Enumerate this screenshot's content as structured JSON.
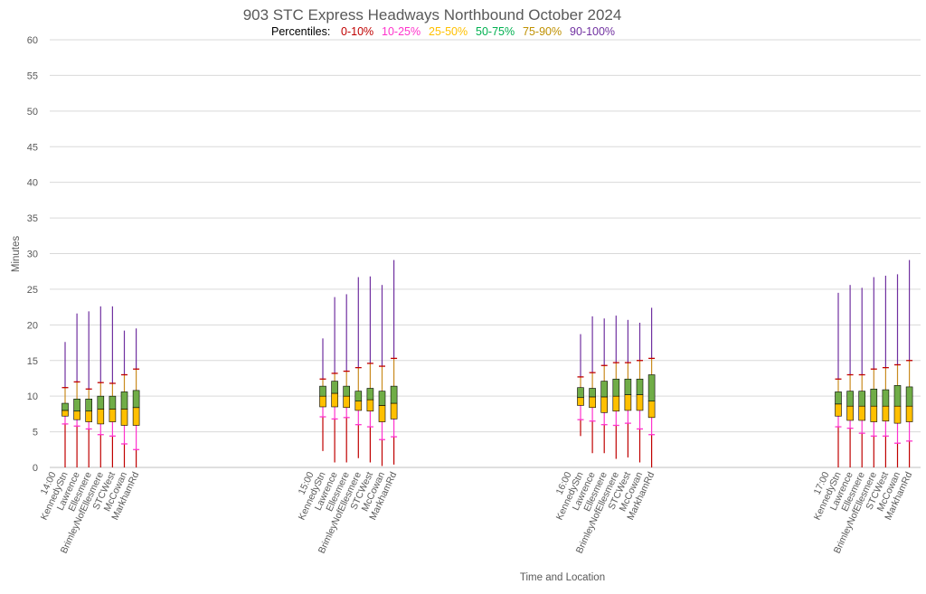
{
  "colors": {
    "p0_10": "#c00000",
    "p10_25": "#ff33cc",
    "p25_50": "#ffc000",
    "p50_75": "#70ad47",
    "p75_90": "#c98b1f",
    "p90_100": "#7030a0",
    "p25_50_legend": "#ffc000",
    "p50_75_legend": "#00b050",
    "p75_90_legend": "#bf9000",
    "grid": "#d9d9d9",
    "text": "#595959"
  },
  "chart_data": {
    "type": "box",
    "title": "903 STC Express Headways Northbound October 2024",
    "legend": {
      "label": "Percentiles:",
      "entries": [
        "0-10%",
        "10-25%",
        "25-50%",
        "50-75%",
        "75-90%",
        "90-100%"
      ],
      "placement": "top"
    },
    "xlabel": "Time and Location",
    "ylabel": "Minutes",
    "ylim": [
      0,
      60
    ],
    "yticks": [
      0,
      5,
      10,
      15,
      20,
      25,
      30,
      35,
      40,
      45,
      50,
      55,
      60
    ],
    "grid": true,
    "groups": [
      {
        "time": "14:00",
        "stops": [
          {
            "name": "KennedyStn",
            "min": 0,
            "p10": 6.1,
            "p25": 7.2,
            "p50": 8.0,
            "p75": 9.0,
            "p90": 11.2,
            "max": 17.6
          },
          {
            "name": "Lawrence",
            "min": 0,
            "p10": 5.8,
            "p25": 6.7,
            "p50": 7.9,
            "p75": 9.6,
            "p90": 12.0,
            "max": 21.6
          },
          {
            "name": "Ellesmere",
            "min": 0,
            "p10": 5.4,
            "p25": 6.4,
            "p50": 7.9,
            "p75": 9.6,
            "p90": 11.0,
            "max": 21.9
          },
          {
            "name": "BrimleyNofEllesmere",
            "min": 0,
            "p10": 4.6,
            "p25": 6.1,
            "p50": 8.2,
            "p75": 10.0,
            "p90": 11.9,
            "max": 22.6
          },
          {
            "name": "STCWest",
            "min": 0,
            "p10": 4.4,
            "p25": 6.4,
            "p50": 8.2,
            "p75": 10.0,
            "p90": 11.8,
            "max": 22.6
          },
          {
            "name": "McCowan",
            "min": 0,
            "p10": 3.3,
            "p25": 5.9,
            "p50": 8.2,
            "p75": 10.6,
            "p90": 13.0,
            "max": 19.2
          },
          {
            "name": "MarkhamRd",
            "min": 0,
            "p10": 2.5,
            "p25": 5.9,
            "p50": 8.4,
            "p75": 10.8,
            "p90": 13.8,
            "max": 19.5
          }
        ]
      },
      {
        "time": "15:00",
        "stops": [
          {
            "name": "KennedyStn",
            "min": 2.3,
            "p10": 7.1,
            "p25": 8.5,
            "p50": 10.0,
            "p75": 11.4,
            "p90": 12.4,
            "max": 18.1
          },
          {
            "name": "Lawrence",
            "min": 0.7,
            "p10": 6.8,
            "p25": 8.5,
            "p50": 10.4,
            "p75": 12.1,
            "p90": 13.2,
            "max": 23.9
          },
          {
            "name": "Ellesmere",
            "min": 0.7,
            "p10": 7.0,
            "p25": 8.4,
            "p50": 10.0,
            "p75": 11.4,
            "p90": 13.5,
            "max": 24.3
          },
          {
            "name": "BrimleyNofEllesmere",
            "min": 1.3,
            "p10": 6.0,
            "p25": 8.0,
            "p50": 9.3,
            "p75": 10.7,
            "p90": 14.0,
            "max": 26.7
          },
          {
            "name": "STCWest",
            "min": 0.7,
            "p10": 5.7,
            "p25": 7.9,
            "p50": 9.5,
            "p75": 11.1,
            "p90": 14.6,
            "max": 26.8
          },
          {
            "name": "McCowan",
            "min": 0.2,
            "p10": 3.9,
            "p25": 6.4,
            "p50": 8.7,
            "p75": 10.7,
            "p90": 14.2,
            "max": 25.6
          },
          {
            "name": "MarkhamRd",
            "min": 0.4,
            "p10": 4.3,
            "p25": 6.8,
            "p50": 9.0,
            "p75": 11.4,
            "p90": 15.3,
            "max": 29.1
          }
        ]
      },
      {
        "time": "16:00",
        "stops": [
          {
            "name": "KennedyStn",
            "min": 4.4,
            "p10": 6.7,
            "p25": 8.7,
            "p50": 9.8,
            "p75": 11.2,
            "p90": 12.7,
            "max": 18.7
          },
          {
            "name": "Lawrence",
            "min": 2.0,
            "p10": 6.5,
            "p25": 8.4,
            "p50": 9.9,
            "p75": 11.1,
            "p90": 13.3,
            "max": 21.2
          },
          {
            "name": "Ellesmere",
            "min": 2.0,
            "p10": 6.0,
            "p25": 7.7,
            "p50": 9.9,
            "p75": 12.1,
            "p90": 14.3,
            "max": 20.9
          },
          {
            "name": "BrimleyNofEllesmere",
            "min": 1.2,
            "p10": 5.9,
            "p25": 7.9,
            "p50": 10.0,
            "p75": 12.4,
            "p90": 14.7,
            "max": 21.3
          },
          {
            "name": "STCWest",
            "min": 1.4,
            "p10": 6.2,
            "p25": 8.0,
            "p50": 10.2,
            "p75": 12.4,
            "p90": 14.7,
            "max": 20.7
          },
          {
            "name": "McCowan",
            "min": 0.7,
            "p10": 5.4,
            "p25": 8.0,
            "p50": 10.2,
            "p75": 12.4,
            "p90": 15.0,
            "max": 20.3
          },
          {
            "name": "MarkhamRd",
            "min": 0,
            "p10": 4.6,
            "p25": 7.0,
            "p50": 9.3,
            "p75": 13.0,
            "p90": 15.3,
            "max": 22.4
          }
        ]
      },
      {
        "time": "17:00",
        "stops": [
          {
            "name": "KennedyStn",
            "min": 0,
            "p10": 5.7,
            "p25": 7.2,
            "p50": 8.9,
            "p75": 10.6,
            "p90": 12.4,
            "max": 24.5
          },
          {
            "name": "Lawrence",
            "min": 0,
            "p10": 5.5,
            "p25": 6.6,
            "p50": 8.6,
            "p75": 10.7,
            "p90": 13.0,
            "max": 25.6
          },
          {
            "name": "Ellesmere",
            "min": 0,
            "p10": 4.8,
            "p25": 6.6,
            "p50": 8.6,
            "p75": 10.7,
            "p90": 13.0,
            "max": 25.2
          },
          {
            "name": "BrimleyNofEllesmere",
            "min": 0,
            "p10": 4.4,
            "p25": 6.4,
            "p50": 8.6,
            "p75": 11.0,
            "p90": 13.8,
            "max": 26.7
          },
          {
            "name": "STCWest",
            "min": 0,
            "p10": 4.4,
            "p25": 6.5,
            "p50": 8.6,
            "p75": 10.9,
            "p90": 14.0,
            "max": 26.9
          },
          {
            "name": "McCowan",
            "min": 0,
            "p10": 3.4,
            "p25": 6.2,
            "p50": 8.6,
            "p75": 11.5,
            "p90": 14.4,
            "max": 27.1
          },
          {
            "name": "MarkhamRd",
            "min": 0,
            "p10": 3.7,
            "p25": 6.4,
            "p50": 8.6,
            "p75": 11.3,
            "p90": 15.0,
            "max": 29.1
          }
        ]
      }
    ]
  }
}
